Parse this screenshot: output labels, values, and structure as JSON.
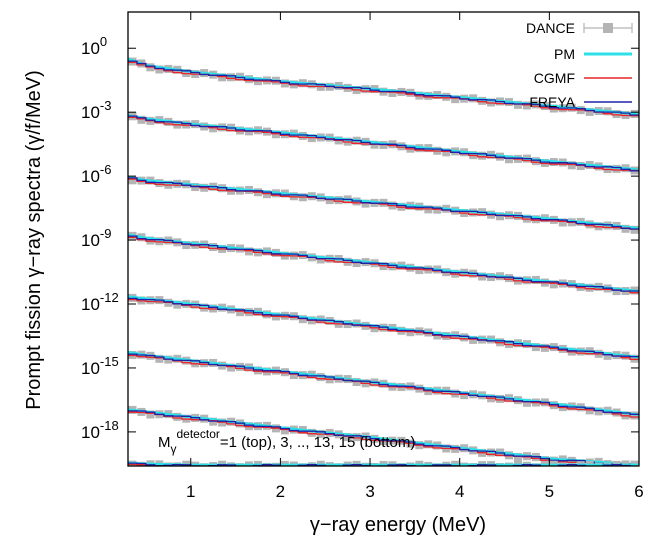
{
  "chart_data": {
    "type": "line",
    "xlabel": "γ−ray energy (MeV)",
    "ylabel": "Prompt fission γ−ray spectra (γ/f/MeV)",
    "xlim": [
      0.3,
      6.0
    ],
    "ylim_log10": [
      -19.6,
      1.7
    ],
    "yscale": "log",
    "x_ticks": [
      1,
      2,
      3,
      4,
      5,
      6
    ],
    "x_tick_labels": [
      "1",
      "2",
      "3",
      "4",
      "5",
      "6"
    ],
    "y_ticks_log10": [
      0,
      -3,
      -6,
      -9,
      -12,
      -15,
      -18
    ],
    "y_tick_labels": [
      {
        "base": "10",
        "exp": "0"
      },
      {
        "base": "10",
        "exp": "-3"
      },
      {
        "base": "10",
        "exp": "-6"
      },
      {
        "base": "10",
        "exp": "-9"
      },
      {
        "base": "10",
        "exp": "-12"
      },
      {
        "base": "10",
        "exp": "-15"
      },
      {
        "base": "10",
        "exp": "-18"
      }
    ],
    "legend": [
      {
        "label": "DANCE",
        "color": "#b4b4b4",
        "style": "points-errorbars"
      },
      {
        "label": "PM",
        "color": "#2ce0e8",
        "style": "line"
      },
      {
        "label": "CGMF",
        "color": "#e8252a",
        "style": "step"
      },
      {
        "label": "FREYA",
        "color": "#1f22a8",
        "style": "step"
      }
    ],
    "legend_position": "top-right",
    "annotation": {
      "main": "M",
      "sub": "γ",
      "sup": "detector",
      "rest": "=1 (top), 3, .., 13, 15 (bottom)"
    },
    "multiplicities": [
      1,
      3,
      5,
      7,
      9,
      11,
      13,
      15
    ],
    "series_log10_by_multiplicity": [
      {
        "multiplicity": 1,
        "x": [
          0.3,
          0.5,
          1.0,
          2.0,
          3.0,
          4.0,
          5.0,
          6.0
        ],
        "log10_y": [
          -0.55,
          -0.85,
          -1.15,
          -1.6,
          -1.95,
          -2.35,
          -2.75,
          -3.15
        ]
      },
      {
        "multiplicity": 3,
        "x": [
          0.3,
          0.5,
          1.0,
          2.0,
          3.0,
          4.0,
          5.0,
          6.0
        ],
        "log10_y": [
          -3.2,
          -3.35,
          -3.6,
          -4.0,
          -4.45,
          -4.9,
          -5.35,
          -5.75
        ]
      },
      {
        "multiplicity": 5,
        "x": [
          0.3,
          0.5,
          1.0,
          2.0,
          3.0,
          4.0,
          5.0,
          6.0
        ],
        "log10_y": [
          -6.1,
          -6.25,
          -6.45,
          -6.85,
          -7.25,
          -7.65,
          -8.05,
          -8.5
        ]
      },
      {
        "multiplicity": 7,
        "x": [
          0.3,
          0.5,
          1.0,
          2.0,
          3.0,
          4.0,
          5.0,
          6.0
        ],
        "log10_y": [
          -8.8,
          -8.95,
          -9.2,
          -9.65,
          -10.1,
          -10.55,
          -11.0,
          -11.45
        ]
      },
      {
        "multiplicity": 9,
        "x": [
          0.3,
          0.5,
          1.0,
          2.0,
          3.0,
          4.0,
          5.0,
          6.0
        ],
        "log10_y": [
          -11.7,
          -11.8,
          -12.05,
          -12.55,
          -13.05,
          -13.55,
          -14.05,
          -14.55
        ]
      },
      {
        "multiplicity": 11,
        "x": [
          0.3,
          0.5,
          1.0,
          2.0,
          3.0,
          4.0,
          5.0,
          6.0
        ],
        "log10_y": [
          -14.3,
          -14.45,
          -14.7,
          -15.2,
          -15.7,
          -16.2,
          -16.7,
          -17.25
        ]
      },
      {
        "multiplicity": 13,
        "x": [
          0.3,
          0.5,
          1.0,
          2.0,
          3.0,
          4.0,
          5.0,
          6.0
        ],
        "log10_y": [
          -17.0,
          -17.1,
          -17.35,
          -17.85,
          -18.3,
          -18.8,
          -19.3,
          -19.6
        ]
      },
      {
        "multiplicity": 15,
        "x": [
          0.3,
          0.5,
          1.0,
          2.0,
          3.0,
          4.0,
          5.0,
          6.0
        ],
        "log10_y": [
          -19.5,
          -19.55,
          -19.6,
          -19.6,
          -19.6,
          -19.6,
          -19.6,
          -19.6
        ]
      }
    ]
  }
}
